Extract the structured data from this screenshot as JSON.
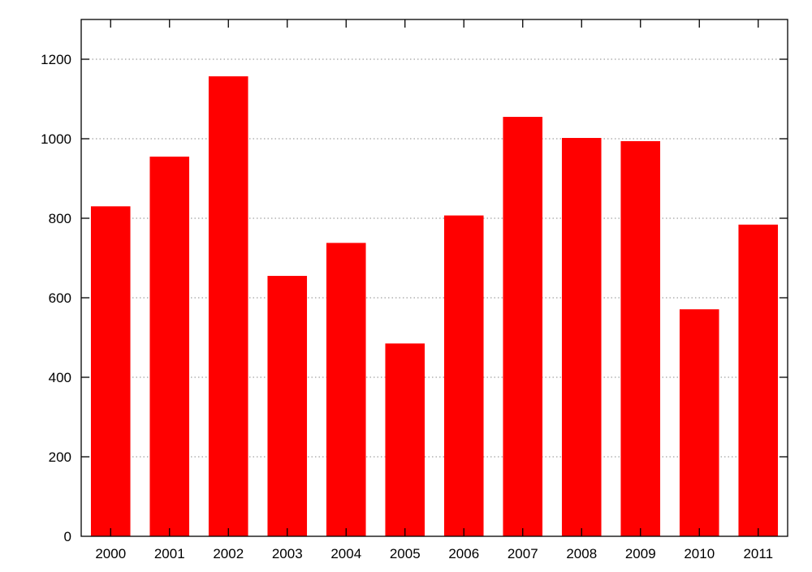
{
  "chart_data": {
    "type": "bar",
    "title": "",
    "xlabel": "",
    "ylabel": "",
    "categories": [
      "2000",
      "2001",
      "2002",
      "2003",
      "2004",
      "2005",
      "2006",
      "2007",
      "2008",
      "2009",
      "2010",
      "2011"
    ],
    "values": [
      830,
      955,
      1157,
      655,
      738,
      485,
      807,
      1055,
      1002,
      994,
      571,
      784
    ],
    "ylim": [
      0,
      1300
    ],
    "yticks": [
      0,
      200,
      400,
      600,
      800,
      1000,
      1200
    ],
    "ytick_labels": [
      "0",
      "200",
      "400",
      "600",
      "800",
      "1000",
      "1200"
    ],
    "grid": true,
    "legend": "none",
    "bar_color": "#ff0000"
  }
}
